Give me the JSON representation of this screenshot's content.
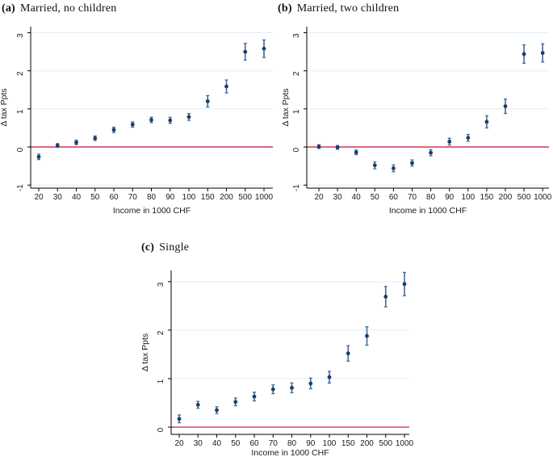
{
  "colors": {
    "marker": "#1c3e63",
    "ci": "#46699a",
    "refline": "#dc4266",
    "grid": "#e3edf5",
    "axis": "#000000",
    "text": "#1a1a1a"
  },
  "chart_data": [
    {
      "type": "scatter",
      "panel_label": "(a)",
      "title": "Married, no children",
      "xlabel": "Income in 1000 CHF",
      "ylabel": "Δ tax Ppts",
      "x_categories": [
        "20",
        "30",
        "40",
        "50",
        "60",
        "70",
        "80",
        "90",
        "100",
        "150",
        "200",
        "500",
        "1000"
      ],
      "values": [
        -0.26,
        0.04,
        0.12,
        0.23,
        0.45,
        0.59,
        0.71,
        0.7,
        0.79,
        1.2,
        1.59,
        2.5,
        2.58
      ],
      "ci_half": [
        0.07,
        0.05,
        0.06,
        0.06,
        0.07,
        0.07,
        0.07,
        0.08,
        0.09,
        0.15,
        0.17,
        0.22,
        0.23
      ],
      "yticks": [
        -1,
        0,
        1,
        2,
        3
      ],
      "ylim": [
        -1.08,
        3.16
      ],
      "refline_y": 0,
      "grid": true,
      "legend": "none"
    },
    {
      "type": "scatter",
      "panel_label": "(b)",
      "title": "Married, two children",
      "xlabel": "Income in 1000 CHF",
      "ylabel": "Δ tax Ppts",
      "x_categories": [
        "20",
        "30",
        "40",
        "50",
        "60",
        "70",
        "80",
        "90",
        "100",
        "150",
        "200",
        "500",
        "1000"
      ],
      "values": [
        0.01,
        -0.01,
        -0.14,
        -0.48,
        -0.56,
        -0.42,
        -0.15,
        0.14,
        0.24,
        0.66,
        1.07,
        2.44,
        2.47
      ],
      "ci_half": [
        0.05,
        0.05,
        0.06,
        0.09,
        0.09,
        0.08,
        0.08,
        0.09,
        0.09,
        0.16,
        0.19,
        0.24,
        0.24
      ],
      "yticks": [
        -1,
        0,
        1,
        2,
        3
      ],
      "ylim": [
        -1.08,
        3.16
      ],
      "refline_y": 0,
      "grid": true,
      "legend": "none"
    },
    {
      "type": "scatter",
      "panel_label": "(c)",
      "title": "Single",
      "xlabel": "Income in 1000 CHF",
      "ylabel": "Δ tax Ppts",
      "x_categories": [
        "20",
        "30",
        "40",
        "50",
        "60",
        "70",
        "80",
        "90",
        "100",
        "150",
        "200",
        "500",
        "1000"
      ],
      "values": [
        0.17,
        0.46,
        0.35,
        0.52,
        0.63,
        0.78,
        0.81,
        0.9,
        1.03,
        1.52,
        1.88,
        2.69,
        2.95
      ],
      "ci_half": [
        0.08,
        0.07,
        0.07,
        0.08,
        0.09,
        0.09,
        0.1,
        0.11,
        0.12,
        0.16,
        0.19,
        0.21,
        0.24
      ],
      "yticks": [
        0,
        1,
        2,
        3
      ],
      "ylim": [
        -0.15,
        3.23
      ],
      "refline_y": 0,
      "grid": true,
      "legend": "none"
    }
  ]
}
